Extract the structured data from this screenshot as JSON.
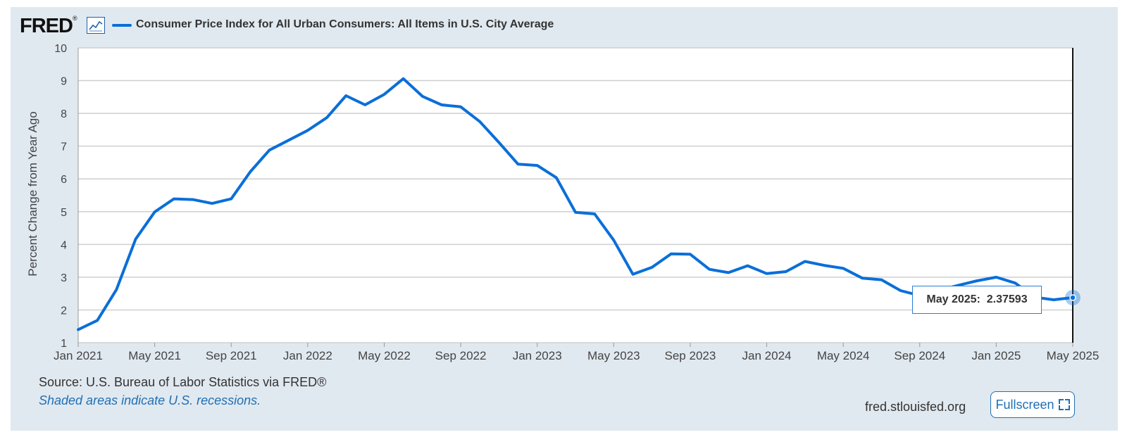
{
  "header": {
    "logo_text": "FRED",
    "logo_mark": "®",
    "legend_label": "Consumer Price Index for All Urban Consumers: All Items in U.S. City Average"
  },
  "footer": {
    "source": "Source: U.S. Bureau of Labor Statistics via FRED®",
    "recession_note": "Shaded areas indicate U.S. recessions.",
    "site": "fred.stlouisfed.org",
    "fullscreen_label": "Fullscreen"
  },
  "tooltip": {
    "label": "May 2025:",
    "value": "2.37593"
  },
  "colors": {
    "series": "#0a6fd8",
    "panel_bg": "#e1e9f0",
    "plot_bg": "#ffffff",
    "grid": "#cfcfcf"
  },
  "chart_data": {
    "type": "line",
    "ylabel": "Percent Change from Year Ago",
    "xlabel": "",
    "ylim": [
      1,
      10
    ],
    "yticks": [
      "1",
      "2",
      "3",
      "4",
      "5",
      "6",
      "7",
      "8",
      "9",
      "10"
    ],
    "xticks": [
      "Jan 2021",
      "May 2021",
      "Sep 2021",
      "Jan 2022",
      "May 2022",
      "Sep 2022",
      "Jan 2023",
      "May 2023",
      "Sep 2023",
      "Jan 2024",
      "May 2024",
      "Sep 2024",
      "Jan 2025",
      "May 2025"
    ],
    "grid": true,
    "series": [
      {
        "name": "Consumer Price Index for All Urban Consumers: All Items in U.S. City Average",
        "x": [
          "2021-01",
          "2021-02",
          "2021-03",
          "2021-04",
          "2021-05",
          "2021-06",
          "2021-07",
          "2021-08",
          "2021-09",
          "2021-10",
          "2021-11",
          "2021-12",
          "2022-01",
          "2022-02",
          "2022-03",
          "2022-04",
          "2022-05",
          "2022-06",
          "2022-07",
          "2022-08",
          "2022-09",
          "2022-10",
          "2022-11",
          "2022-12",
          "2023-01",
          "2023-02",
          "2023-03",
          "2023-04",
          "2023-05",
          "2023-06",
          "2023-07",
          "2023-08",
          "2023-09",
          "2023-10",
          "2023-11",
          "2023-12",
          "2024-01",
          "2024-02",
          "2024-03",
          "2024-04",
          "2024-05",
          "2024-06",
          "2024-07",
          "2024-08",
          "2024-09",
          "2024-10",
          "2024-11",
          "2024-12",
          "2025-01",
          "2025-02",
          "2025-03",
          "2025-04",
          "2025-05"
        ],
        "values": [
          1.4,
          1.68,
          2.62,
          4.16,
          4.99,
          5.39,
          5.37,
          5.25,
          5.39,
          6.22,
          6.88,
          7.18,
          7.48,
          7.87,
          8.54,
          8.26,
          8.58,
          9.06,
          8.52,
          8.26,
          8.2,
          7.75,
          7.11,
          6.45,
          6.41,
          6.04,
          4.98,
          4.93,
          4.13,
          3.09,
          3.3,
          3.71,
          3.7,
          3.24,
          3.14,
          3.35,
          3.11,
          3.17,
          3.48,
          3.36,
          3.27,
          2.97,
          2.92,
          2.59,
          2.44,
          2.6,
          2.75,
          2.89,
          3.0,
          2.82,
          2.39,
          2.31,
          2.37593
        ]
      }
    ],
    "highlight": {
      "x": "2025-05",
      "y": 2.37593
    }
  }
}
